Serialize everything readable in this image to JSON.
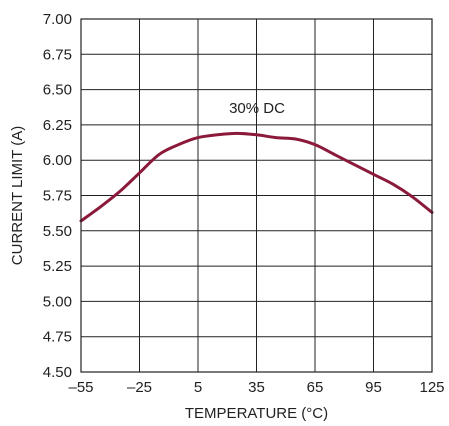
{
  "chart_data": {
    "type": "line",
    "title": "",
    "xlabel": "TEMPERATURE (°C)",
    "ylabel": "CURRENT LIMIT (A)",
    "xlim": [
      -55,
      125
    ],
    "ylim": [
      4.5,
      7.0
    ],
    "xticks": [
      -55,
      -25,
      5,
      35,
      65,
      95,
      125
    ],
    "xtick_labels": [
      "–55",
      "–25",
      "5",
      "35",
      "65",
      "95",
      "125"
    ],
    "yticks": [
      4.5,
      4.75,
      5.0,
      5.25,
      5.5,
      5.75,
      6.0,
      6.25,
      6.5,
      6.75,
      7.0
    ],
    "ytick_labels": [
      "4.50",
      "4.75",
      "5.00",
      "5.25",
      "5.50",
      "5.75",
      "6.00",
      "6.25",
      "6.50",
      "6.75",
      "7.00"
    ],
    "grid": true,
    "annotation": "30% DC",
    "line_color": "#8b1a3a",
    "series": [
      {
        "x": [
          -55,
          -45,
          -35,
          -25,
          -15,
          -5,
          5,
          15,
          25,
          35,
          45,
          55,
          65,
          75,
          85,
          95,
          105,
          115,
          125
        ],
        "values": [
          5.57,
          5.67,
          5.78,
          5.91,
          6.04,
          6.11,
          6.16,
          6.18,
          6.19,
          6.18,
          6.16,
          6.15,
          6.11,
          6.04,
          5.97,
          5.9,
          5.83,
          5.74,
          5.63
        ]
      }
    ]
  }
}
